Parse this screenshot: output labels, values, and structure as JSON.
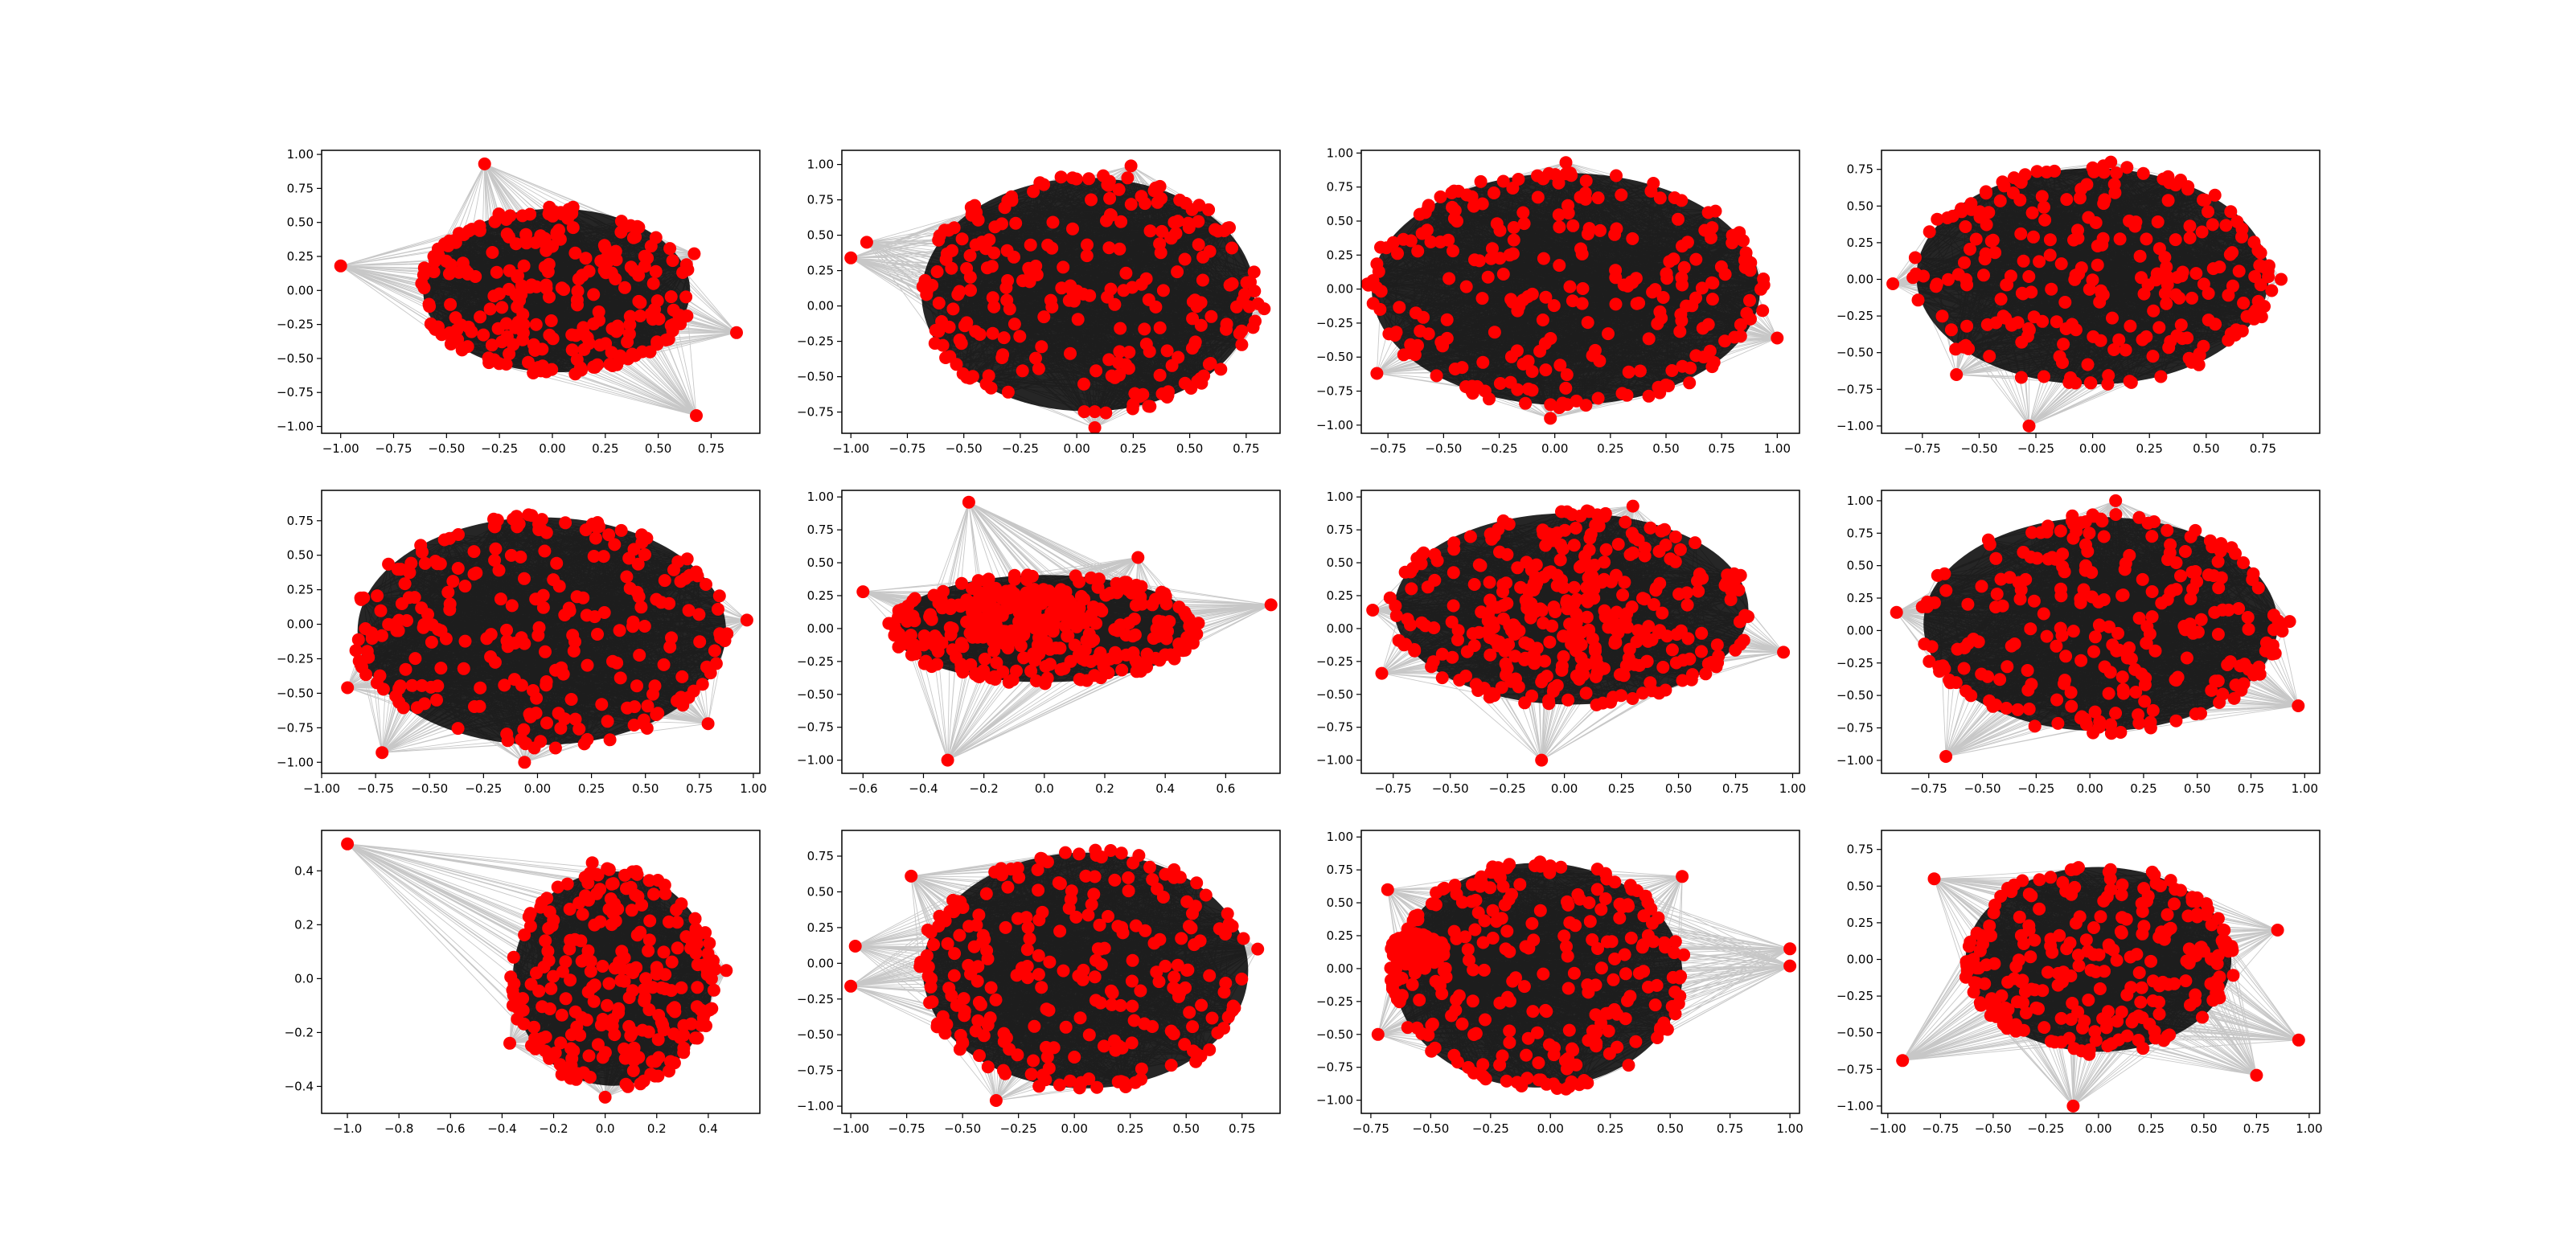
{
  "figure": {
    "background": "#ffffff",
    "node_color": "#ff0000",
    "edge_color": "#000000",
    "axes_color": "#000000"
  },
  "chart_data": [
    {
      "type": "scatter",
      "xlim": [
        -1.09,
        0.98
      ],
      "ylim": [
        -1.05,
        1.03
      ],
      "xticks": [
        -1.0,
        -0.75,
        -0.5,
        -0.25,
        0.0,
        0.25,
        0.5,
        0.75
      ],
      "xtick_labels": [
        "−1.00",
        "−0.75",
        "−0.50",
        "−0.25",
        "0.00",
        "0.25",
        "0.50",
        "0.75"
      ],
      "yticks": [
        -1.0,
        -0.75,
        -0.5,
        -0.25,
        0.0,
        0.25,
        0.5,
        0.75,
        1.0
      ],
      "ytick_labels": [
        "−1.00",
        "−0.75",
        "−0.50",
        "−0.25",
        "0.00",
        "0.25",
        "0.50",
        "0.75",
        "1.00"
      ],
      "blob": {
        "cx": 0.02,
        "cy": 0.0,
        "rx": 0.65,
        "ry": 0.62
      },
      "outliers": [
        [
          -0.32,
          0.93
        ],
        [
          -1.0,
          0.18
        ],
        [
          0.87,
          -0.31
        ],
        [
          0.68,
          -0.92
        ],
        [
          0.67,
          0.27
        ]
      ]
    },
    {
      "type": "scatter",
      "xlim": [
        -1.04,
        0.9
      ],
      "ylim": [
        -0.9,
        1.1
      ],
      "xticks": [
        -1.0,
        -0.75,
        -0.5,
        -0.25,
        0.0,
        0.25,
        0.5,
        0.75
      ],
      "xtick_labels": [
        "−1.00",
        "−0.75",
        "−0.50",
        "−0.25",
        "0.00",
        "0.25",
        "0.50",
        "0.75"
      ],
      "yticks": [
        -0.75,
        -0.5,
        -0.25,
        0.0,
        0.25,
        0.5,
        0.75,
        1.0
      ],
      "ytick_labels": [
        "−0.75",
        "−0.50",
        "−0.25",
        "0.00",
        "0.25",
        "0.50",
        "0.75",
        "1.00"
      ],
      "blob": {
        "cx": 0.05,
        "cy": 0.08,
        "rx": 0.76,
        "ry": 0.85
      },
      "outliers": [
        [
          -1.0,
          0.34
        ],
        [
          -0.93,
          0.45
        ],
        [
          0.24,
          0.99
        ],
        [
          0.83,
          -0.02
        ],
        [
          0.08,
          -0.86
        ]
      ]
    },
    {
      "type": "scatter",
      "xlim": [
        -0.87,
        1.1
      ],
      "ylim": [
        -1.06,
        1.02
      ],
      "xticks": [
        -0.75,
        -0.5,
        -0.25,
        0.0,
        0.25,
        0.5,
        0.75,
        1.0
      ],
      "xtick_labels": [
        "−0.75",
        "−0.50",
        "−0.25",
        "0.00",
        "0.25",
        "0.50",
        "0.75",
        "1.00"
      ],
      "yticks": [
        -1.0,
        -0.75,
        -0.5,
        -0.25,
        0.0,
        0.25,
        0.5,
        0.75,
        1.0
      ],
      "ytick_labels": [
        "−1.00",
        "−0.75",
        "−0.50",
        "−0.25",
        "0.00",
        "0.25",
        "0.50",
        "0.75",
        "1.00"
      ],
      "blob": {
        "cx": 0.05,
        "cy": 0.0,
        "rx": 0.9,
        "ry": 0.88
      },
      "outliers": [
        [
          1.0,
          -0.36
        ],
        [
          -0.8,
          -0.62
        ],
        [
          0.05,
          0.93
        ],
        [
          -0.02,
          -0.95
        ],
        [
          0.94,
          0.03
        ]
      ]
    },
    {
      "type": "scatter",
      "xlim": [
        -0.93,
        1.0
      ],
      "ylim": [
        -1.05,
        0.88
      ],
      "xticks": [
        -0.75,
        -0.5,
        -0.25,
        0.0,
        0.25,
        0.5,
        0.75
      ],
      "xtick_labels": [
        "−0.75",
        "−0.50",
        "−0.25",
        "0.00",
        "0.25",
        "0.50",
        "0.75"
      ],
      "yticks": [
        -1.0,
        -0.75,
        -0.5,
        -0.25,
        0.0,
        0.25,
        0.5,
        0.75
      ],
      "ytick_labels": [
        "−1.00",
        "−0.75",
        "−0.50",
        "−0.25",
        "0.00",
        "0.25",
        "0.50",
        "0.75"
      ],
      "blob": {
        "cx": 0.0,
        "cy": 0.02,
        "rx": 0.8,
        "ry": 0.76
      },
      "outliers": [
        [
          -0.88,
          -0.03
        ],
        [
          0.83,
          0.0
        ],
        [
          -0.28,
          -1.0
        ],
        [
          -0.6,
          -0.65
        ],
        [
          0.08,
          0.8
        ]
      ]
    },
    {
      "type": "scatter",
      "xlim": [
        -1.0,
        1.03
      ],
      "ylim": [
        -1.08,
        0.97
      ],
      "xticks": [
        -1.0,
        -0.75,
        -0.5,
        -0.25,
        0.0,
        0.25,
        0.5,
        0.75,
        1.0
      ],
      "xtick_labels": [
        "−1.00",
        "−0.75",
        "−0.50",
        "−0.25",
        "0.00",
        "0.25",
        "0.50",
        "0.75",
        "1.00"
      ],
      "yticks": [
        -1.0,
        -0.75,
        -0.5,
        -0.25,
        0.0,
        0.25,
        0.5,
        0.75
      ],
      "ytick_labels": [
        "−1.00",
        "−0.75",
        "−0.50",
        "−0.25",
        "0.00",
        "0.25",
        "0.50",
        "0.75"
      ],
      "blob": {
        "cx": 0.02,
        "cy": -0.05,
        "rx": 0.88,
        "ry": 0.85
      },
      "outliers": [
        [
          -0.72,
          -0.93
        ],
        [
          -0.06,
          -1.0
        ],
        [
          -0.88,
          -0.46
        ],
        [
          0.97,
          0.03
        ],
        [
          0.79,
          -0.72
        ]
      ]
    },
    {
      "type": "scatter",
      "xlim": [
        -0.67,
        0.78
      ],
      "ylim": [
        -1.1,
        1.05
      ],
      "xticks": [
        -0.6,
        -0.4,
        -0.2,
        0.0,
        0.2,
        0.4,
        0.6
      ],
      "xtick_labels": [
        "−0.6",
        "−0.4",
        "−0.2",
        "0.0",
        "0.2",
        "0.4",
        "0.6"
      ],
      "yticks": [
        -1.0,
        -0.75,
        -0.5,
        -0.25,
        0.0,
        0.25,
        0.5,
        0.75,
        1.0
      ],
      "ytick_labels": [
        "−1.00",
        "−0.75",
        "−0.50",
        "−0.25",
        "0.00",
        "0.25",
        "0.50",
        "0.75",
        "1.00"
      ],
      "blob": {
        "cx": 0.0,
        "cy": 0.0,
        "rx": 0.52,
        "ry": 0.42
      },
      "core": {
        "cx": -0.05,
        "cy": 0.1,
        "rx": 0.24,
        "ry": 0.24
      },
      "outliers": [
        [
          -0.25,
          0.96
        ],
        [
          -0.32,
          -1.0
        ],
        [
          0.75,
          0.18
        ],
        [
          -0.6,
          0.28
        ],
        [
          0.31,
          0.54
        ]
      ]
    },
    {
      "type": "scatter",
      "xlim": [
        -0.89,
        1.03
      ],
      "ylim": [
        -1.1,
        1.05
      ],
      "xticks": [
        -0.75,
        -0.5,
        -0.25,
        0.0,
        0.25,
        0.5,
        0.75,
        1.0
      ],
      "xtick_labels": [
        "−0.75",
        "−0.50",
        "−0.25",
        "0.00",
        "0.25",
        "0.50",
        "0.75",
        "1.00"
      ],
      "yticks": [
        -1.0,
        -0.75,
        -0.5,
        -0.25,
        0.0,
        0.25,
        0.5,
        0.75,
        1.0
      ],
      "ytick_labels": [
        "−1.00",
        "−0.75",
        "−0.50",
        "−0.25",
        "0.00",
        "0.25",
        "0.50",
        "0.75",
        "1.00"
      ],
      "blob": {
        "cx": 0.03,
        "cy": 0.15,
        "rx": 0.8,
        "ry": 0.75
      },
      "core": {
        "cx": 0.02,
        "cy": 0.05,
        "rx": 0.4,
        "ry": 0.5
      },
      "outliers": [
        [
          -0.84,
          0.14
        ],
        [
          0.96,
          -0.18
        ],
        [
          -0.1,
          -1.0
        ],
        [
          0.3,
          0.93
        ],
        [
          -0.8,
          -0.34
        ]
      ]
    },
    {
      "type": "scatter",
      "xlim": [
        -0.97,
        1.07
      ],
      "ylim": [
        -1.1,
        1.08
      ],
      "xticks": [
        -0.75,
        -0.5,
        -0.25,
        0.0,
        0.25,
        0.5,
        0.75,
        1.0
      ],
      "xtick_labels": [
        "−0.75",
        "−0.50",
        "−0.25",
        "0.00",
        "0.25",
        "0.50",
        "0.75",
        "1.00"
      ],
      "yticks": [
        -1.0,
        -0.75,
        -0.5,
        -0.25,
        0.0,
        0.25,
        0.5,
        0.75,
        1.0
      ],
      "ytick_labels": [
        "−1.00",
        "−0.75",
        "−0.50",
        "−0.25",
        "0.00",
        "0.25",
        "0.50",
        "0.75",
        "1.00"
      ],
      "blob": {
        "cx": 0.05,
        "cy": 0.05,
        "rx": 0.85,
        "ry": 0.85
      },
      "outliers": [
        [
          0.12,
          1.0
        ],
        [
          -0.67,
          -0.97
        ],
        [
          0.97,
          -0.58
        ],
        [
          -0.9,
          0.14
        ],
        [
          0.93,
          0.07
        ]
      ]
    },
    {
      "type": "scatter",
      "xlim": [
        -1.1,
        0.6
      ],
      "ylim": [
        -0.5,
        0.55
      ],
      "xticks": [
        -1.0,
        -0.8,
        -0.6,
        -0.4,
        -0.2,
        0.0,
        0.2,
        0.4
      ],
      "xtick_labels": [
        "−1.0",
        "−0.8",
        "−0.6",
        "−0.4",
        "−0.2",
        "0.0",
        "0.2",
        "0.4"
      ],
      "yticks": [
        -0.4,
        -0.2,
        0.0,
        0.2,
        0.4
      ],
      "ytick_labels": [
        "−0.4",
        "−0.2",
        "0.0",
        "0.2",
        "0.4"
      ],
      "blob": {
        "cx": 0.03,
        "cy": -0.0,
        "rx": 0.4,
        "ry": 0.41
      },
      "outliers": [
        [
          -1.0,
          0.5
        ],
        [
          0.47,
          0.03
        ],
        [
          -0.37,
          -0.24
        ],
        [
          -0.05,
          0.43
        ],
        [
          0.0,
          -0.44
        ]
      ]
    },
    {
      "type": "scatter",
      "xlim": [
        -1.04,
        0.92
      ],
      "ylim": [
        -1.05,
        0.93
      ],
      "xticks": [
        -1.0,
        -0.75,
        -0.5,
        -0.25,
        0.0,
        0.25,
        0.5,
        0.75
      ],
      "xtick_labels": [
        "−1.00",
        "−0.75",
        "−0.50",
        "−0.25",
        "0.00",
        "0.25",
        "0.50",
        "0.75"
      ],
      "yticks": [
        -1.0,
        -0.75,
        -0.5,
        -0.25,
        0.0,
        0.25,
        0.5,
        0.75
      ],
      "ytick_labels": [
        "−1.00",
        "−0.75",
        "−0.50",
        "−0.25",
        "0.00",
        "0.25",
        "0.50",
        "0.75"
      ],
      "blob": {
        "cx": 0.05,
        "cy": -0.05,
        "rx": 0.75,
        "ry": 0.85
      },
      "outliers": [
        [
          -1.0,
          -0.16
        ],
        [
          -0.98,
          0.12
        ],
        [
          -0.73,
          0.61
        ],
        [
          0.82,
          0.1
        ],
        [
          -0.35,
          -0.96
        ]
      ]
    },
    {
      "type": "scatter",
      "xlim": [
        -0.79,
        1.04
      ],
      "ylim": [
        -1.1,
        1.05
      ],
      "xticks": [
        -0.75,
        -0.5,
        -0.25,
        0.0,
        0.25,
        0.5,
        0.75,
        1.0
      ],
      "xtick_labels": [
        "−0.75",
        "−0.50",
        "−0.25",
        "0.00",
        "0.25",
        "0.50",
        "0.75",
        "1.00"
      ],
      "yticks": [
        -1.0,
        -0.75,
        -0.5,
        -0.25,
        0.0,
        0.25,
        0.5,
        0.75,
        1.0
      ],
      "ytick_labels": [
        "−1.00",
        "−0.75",
        "−0.50",
        "−0.25",
        "0.00",
        "0.25",
        "0.50",
        "0.75",
        "1.00"
      ],
      "blob": {
        "cx": -0.05,
        "cy": -0.05,
        "rx": 0.62,
        "ry": 0.88
      },
      "core": {
        "cx": -0.55,
        "cy": 0.15,
        "rx": 0.12,
        "ry": 0.14
      },
      "outliers": [
        [
          1.0,
          0.15
        ],
        [
          1.0,
          0.02
        ],
        [
          0.55,
          0.7
        ],
        [
          -0.68,
          0.6
        ],
        [
          -0.72,
          -0.5
        ]
      ]
    },
    {
      "type": "scatter",
      "xlim": [
        -1.03,
        1.05
      ],
      "ylim": [
        -1.05,
        0.88
      ],
      "xticks": [
        -1.0,
        -0.75,
        -0.5,
        -0.25,
        0.0,
        0.25,
        0.5,
        0.75,
        1.0
      ],
      "xtick_labels": [
        "−1.00",
        "−0.75",
        "−0.50",
        "−0.25",
        "0.00",
        "0.25",
        "0.50",
        "0.75",
        "1.00"
      ],
      "yticks": [
        -1.0,
        -0.75,
        -0.5,
        -0.25,
        0.0,
        0.25,
        0.5,
        0.75
      ],
      "ytick_labels": [
        "−1.00",
        "−0.75",
        "−0.50",
        "−0.25",
        "0.00",
        "0.25",
        "0.50",
        "0.75"
      ],
      "blob": {
        "cx": 0.0,
        "cy": 0.0,
        "rx": 0.65,
        "ry": 0.65
      },
      "outliers": [
        [
          -0.93,
          -0.69
        ],
        [
          -0.12,
          -1.0
        ],
        [
          0.95,
          -0.55
        ],
        [
          0.75,
          -0.79
        ],
        [
          -0.78,
          0.55
        ],
        [
          0.85,
          0.2
        ]
      ]
    }
  ]
}
